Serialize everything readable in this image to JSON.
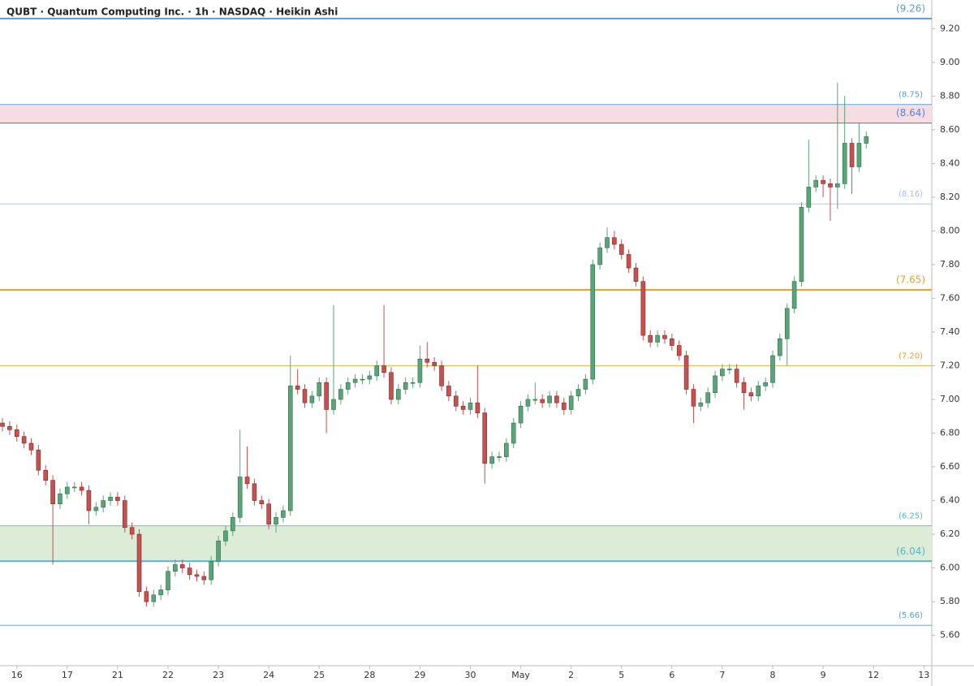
{
  "chart_data": {
    "type": "candlestick",
    "title": "QUBT · Quantum Computing Inc. · 1h · NASDAQ · Heikin Ashi",
    "up_color": "#5aa578",
    "down_color": "#c8504f",
    "open": [
      6.86,
      6.84,
      6.82,
      6.78,
      6.74,
      6.7,
      6.58,
      6.52,
      6.38,
      6.44,
      6.48,
      6.48,
      6.46,
      6.34,
      6.36,
      6.4,
      6.42,
      6.4,
      6.24,
      6.2,
      5.86,
      5.8,
      5.84,
      5.87,
      5.98,
      6.02,
      6.0,
      5.96,
      5.95,
      5.93,
      6.04,
      6.16,
      6.22,
      6.3,
      6.54,
      6.5,
      6.4,
      6.38,
      6.26,
      6.3,
      6.34,
      7.08,
      7.06,
      6.98,
      7.02,
      7.1,
      6.94,
      7.0,
      7.06,
      7.1,
      7.12,
      7.12,
      7.14,
      7.2,
      7.16,
      7.0,
      7.06,
      7.1,
      7.1,
      7.24,
      7.22,
      7.2,
      7.08,
      7.02,
      6.96,
      6.94,
      6.98,
      6.92,
      6.62,
      6.66,
      6.66,
      6.74,
      6.86,
      6.96,
      7.0,
      7.0,
      6.98,
      7.02,
      6.98,
      6.94,
      7.02,
      7.06,
      7.12,
      7.8,
      7.9,
      7.96,
      7.92,
      7.86,
      7.78,
      7.7,
      7.38,
      7.34,
      7.38,
      7.36,
      7.32,
      7.26,
      7.06,
      6.96,
      6.98,
      7.04,
      7.14,
      7.18,
      7.18,
      7.1,
      7.04,
      7.02,
      7.08,
      7.1,
      7.26,
      7.36,
      7.54,
      7.7,
      8.14,
      8.26,
      8.3,
      8.28,
      8.26,
      8.28,
      8.52,
      8.38,
      8.52
    ],
    "high": [
      6.89,
      6.87,
      6.85,
      6.81,
      6.77,
      6.73,
      6.61,
      6.55,
      6.47,
      6.51,
      6.51,
      6.51,
      6.49,
      6.39,
      6.43,
      6.45,
      6.45,
      6.43,
      6.27,
      6.23,
      5.89,
      5.87,
      5.9,
      6.01,
      6.05,
      6.05,
      6.03,
      5.99,
      5.98,
      6.07,
      6.19,
      6.25,
      6.33,
      6.82,
      6.72,
      6.53,
      6.43,
      6.41,
      6.33,
      6.37,
      7.26,
      7.18,
      7.09,
      7.05,
      7.13,
      7.13,
      7.56,
      7.09,
      7.13,
      7.15,
      7.15,
      7.17,
      7.23,
      7.56,
      7.19,
      7.09,
      7.13,
      7.13,
      7.32,
      7.34,
      7.25,
      7.23,
      7.11,
      7.05,
      6.99,
      7.01,
      7.2,
      6.95,
      6.69,
      6.69,
      6.77,
      6.89,
      6.99,
      7.03,
      7.1,
      7.03,
      7.05,
      7.05,
      7.01,
      7.05,
      7.09,
      7.15,
      7.83,
      7.93,
      8.02,
      8.0,
      7.95,
      7.89,
      7.81,
      7.73,
      7.41,
      7.41,
      7.41,
      7.39,
      7.35,
      7.29,
      7.09,
      7.01,
      7.07,
      7.17,
      7.21,
      7.21,
      7.21,
      7.13,
      7.07,
      7.11,
      7.13,
      7.29,
      7.39,
      7.57,
      7.73,
      8.17,
      8.54,
      8.33,
      8.33,
      8.31,
      8.88,
      8.8,
      8.55,
      8.64,
      8.59
    ],
    "low": [
      6.81,
      6.79,
      6.75,
      6.71,
      6.67,
      6.55,
      6.49,
      6.02,
      6.35,
      6.41,
      6.45,
      6.43,
      6.26,
      6.31,
      6.33,
      6.37,
      6.37,
      6.21,
      6.17,
      5.83,
      5.77,
      5.77,
      5.81,
      5.84,
      5.95,
      5.97,
      5.93,
      5.92,
      5.9,
      5.9,
      6.01,
      6.13,
      6.19,
      6.27,
      6.47,
      6.37,
      6.35,
      6.23,
      6.21,
      6.27,
      6.31,
      7.03,
      6.95,
      6.95,
      6.99,
      6.8,
      6.91,
      6.97,
      7.03,
      7.07,
      7.09,
      7.09,
      7.11,
      7.13,
      6.97,
      6.97,
      7.03,
      7.07,
      7.07,
      7.19,
      7.17,
      7.05,
      6.99,
      6.93,
      6.91,
      6.91,
      6.89,
      6.5,
      6.59,
      6.63,
      6.63,
      6.71,
      6.83,
      6.93,
      6.97,
      6.95,
      6.95,
      6.95,
      6.91,
      6.91,
      6.99,
      7.03,
      7.09,
      7.77,
      7.87,
      7.89,
      7.83,
      7.75,
      7.67,
      7.35,
      7.31,
      7.31,
      7.33,
      7.29,
      7.23,
      7.03,
      6.86,
      6.93,
      6.95,
      7.01,
      7.11,
      7.15,
      7.07,
      6.94,
      6.99,
      6.99,
      7.05,
      7.07,
      7.23,
      7.2,
      7.51,
      7.67,
      8.11,
      8.23,
      8.2,
      8.06,
      8.13,
      8.25,
      8.22,
      8.35,
      8.49
    ],
    "close": [
      6.84,
      6.82,
      6.78,
      6.74,
      6.7,
      6.58,
      6.52,
      6.38,
      6.44,
      6.48,
      6.48,
      6.46,
      6.34,
      6.36,
      6.4,
      6.42,
      6.4,
      6.24,
      6.2,
      5.86,
      5.8,
      5.84,
      5.87,
      5.98,
      6.02,
      6.0,
      5.96,
      5.95,
      5.93,
      6.04,
      6.16,
      6.22,
      6.3,
      6.54,
      6.5,
      6.4,
      6.38,
      6.26,
      6.3,
      6.34,
      7.08,
      7.06,
      6.98,
      7.02,
      7.1,
      6.94,
      7.0,
      7.06,
      7.1,
      7.12,
      7.12,
      7.14,
      7.2,
      7.16,
      7.0,
      7.06,
      7.1,
      7.1,
      7.24,
      7.22,
      7.2,
      7.08,
      7.02,
      6.96,
      6.94,
      6.98,
      6.92,
      6.62,
      6.66,
      6.66,
      6.74,
      6.86,
      6.96,
      7.0,
      7.0,
      6.98,
      7.02,
      6.98,
      6.94,
      7.02,
      7.06,
      7.12,
      7.8,
      7.9,
      7.96,
      7.92,
      7.86,
      7.78,
      7.7,
      7.38,
      7.34,
      7.38,
      7.36,
      7.32,
      7.26,
      7.06,
      6.96,
      6.98,
      7.04,
      7.14,
      7.18,
      7.18,
      7.1,
      7.04,
      7.02,
      7.08,
      7.1,
      7.26,
      7.36,
      7.54,
      7.7,
      8.14,
      8.26,
      8.3,
      8.28,
      8.26,
      8.28,
      8.52,
      8.38,
      8.52,
      8.56
    ],
    "xlim": [
      -0.34,
      129.1
    ],
    "xticks": [
      {
        "value": 2,
        "label": "16"
      },
      {
        "value": 9,
        "label": "17"
      },
      {
        "value": 16,
        "label": "21"
      },
      {
        "value": 23,
        "label": "22"
      },
      {
        "value": 30,
        "label": "23"
      },
      {
        "value": 37,
        "label": "24"
      },
      {
        "value": 44,
        "label": "25"
      },
      {
        "value": 51,
        "label": "28"
      },
      {
        "value": 58,
        "label": "29"
      },
      {
        "value": 65,
        "label": "30"
      },
      {
        "value": 72,
        "label": "May"
      },
      {
        "value": 79,
        "label": "2"
      },
      {
        "value": 86,
        "label": "5"
      },
      {
        "value": 93,
        "label": "6"
      },
      {
        "value": 100,
        "label": "7"
      },
      {
        "value": 107,
        "label": "8"
      },
      {
        "value": 114,
        "label": "9"
      },
      {
        "value": 121,
        "label": "12"
      },
      {
        "value": 128,
        "label": "13"
      }
    ],
    "ylim": [
      5.42,
      9.37
    ],
    "yticks": [
      {
        "value": 5.6,
        "label": "5.60"
      },
      {
        "value": 5.8,
        "label": "5.80"
      },
      {
        "value": 6.0,
        "label": "6.00"
      },
      {
        "value": 6.2,
        "label": "6.20"
      },
      {
        "value": 6.4,
        "label": "6.40"
      },
      {
        "value": 6.6,
        "label": "6.60"
      },
      {
        "value": 6.8,
        "label": "6.80"
      },
      {
        "value": 7.0,
        "label": "7.00"
      },
      {
        "value": 7.2,
        "label": "7.20"
      },
      {
        "value": 7.4,
        "label": "7.40"
      },
      {
        "value": 7.6,
        "label": "7.60"
      },
      {
        "value": 7.8,
        "label": "7.80"
      },
      {
        "value": 8.0,
        "label": "8.00"
      },
      {
        "value": 8.2,
        "label": "8.20"
      },
      {
        "value": 8.4,
        "label": "8.40"
      },
      {
        "value": 8.6,
        "label": "8.60"
      },
      {
        "value": 8.8,
        "label": "8.80"
      },
      {
        "value": 9.0,
        "label": "9.00"
      },
      {
        "value": 9.2,
        "label": "9.20"
      }
    ],
    "zones": [
      {
        "from": 8.64,
        "to": 8.75,
        "color": "#f5dde2"
      },
      {
        "from": 6.04,
        "to": 6.25,
        "color": "#dcecd6"
      }
    ],
    "levels": [
      {
        "value": 9.26,
        "label": "(9.26)",
        "color": "#5b9bd5",
        "width": 2
      },
      {
        "value": 8.75,
        "label": "(8.75)",
        "color": "#5b9bd5",
        "width": 0.8
      },
      {
        "value": 8.64,
        "label": "(8.64)",
        "color": "#5b7fd5",
        "width": 1.2
      },
      {
        "value": 8.16,
        "label": "(8.16)",
        "color": "#9cc3e6",
        "width": 0.8
      },
      {
        "value": 7.65,
        "label": "(7.65)",
        "color": "#e6a020",
        "width": 2
      },
      {
        "value": 7.2,
        "label": "(7.20)",
        "color": "#e6a020",
        "width": 0.8
      },
      {
        "value": 6.25,
        "label": "(6.25)",
        "color": "#5ab4c8",
        "width": 0.8
      },
      {
        "value": 6.04,
        "label": "(6.04)",
        "color": "#5ab4c8",
        "width": 2
      },
      {
        "value": 5.66,
        "label": "(5.66)",
        "color": "#5b9bd5",
        "width": 0.8
      }
    ]
  }
}
